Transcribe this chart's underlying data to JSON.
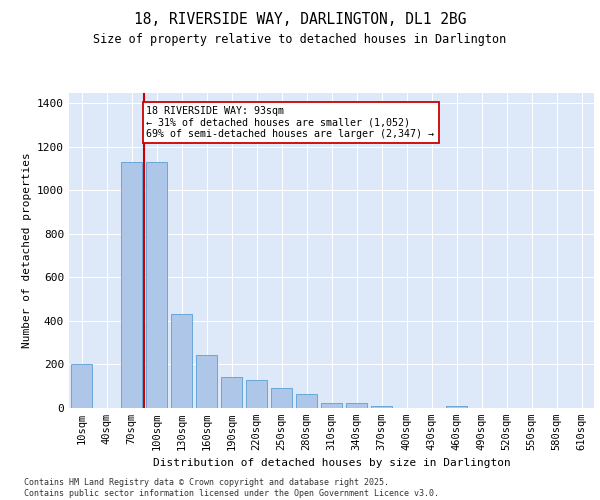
{
  "title1": "18, RIVERSIDE WAY, DARLINGTON, DL1 2BG",
  "title2": "Size of property relative to detached houses in Darlington",
  "xlabel": "Distribution of detached houses by size in Darlington",
  "ylabel": "Number of detached properties",
  "categories": [
    "10sqm",
    "40sqm",
    "70sqm",
    "100sqm",
    "130sqm",
    "160sqm",
    "190sqm",
    "220sqm",
    "250sqm",
    "280sqm",
    "310sqm",
    "340sqm",
    "370sqm",
    "400sqm",
    "430sqm",
    "460sqm",
    "490sqm",
    "520sqm",
    "550sqm",
    "580sqm",
    "610sqm"
  ],
  "values": [
    200,
    0,
    1130,
    1130,
    430,
    240,
    140,
    125,
    90,
    60,
    20,
    20,
    5,
    0,
    0,
    5,
    0,
    0,
    0,
    0,
    0
  ],
  "bar_color": "#aec6e8",
  "bar_edge_color": "#5a9fd4",
  "vline_x": 2.5,
  "vline_color": "#cc0000",
  "annotation_text": "18 RIVERSIDE WAY: 93sqm\n← 31% of detached houses are smaller (1,052)\n69% of semi-detached houses are larger (2,347) →",
  "annotation_box_color": "#ffffff",
  "annotation_box_edge": "#cc0000",
  "ylim": [
    0,
    1450
  ],
  "yticks": [
    0,
    200,
    400,
    600,
    800,
    1000,
    1200,
    1400
  ],
  "bg_color": "#dde8f8",
  "footer1": "Contains HM Land Registry data © Crown copyright and database right 2025.",
  "footer2": "Contains public sector information licensed under the Open Government Licence v3.0."
}
